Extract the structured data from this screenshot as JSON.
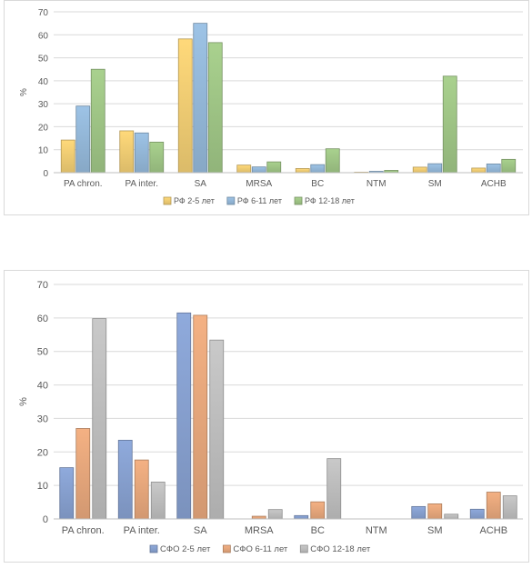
{
  "chart_data": [
    {
      "type": "bar",
      "title": "",
      "xlabel": "",
      "ylabel": "%",
      "ylim": [
        0,
        70
      ],
      "yticks": [
        0,
        10,
        20,
        30,
        40,
        50,
        60,
        70
      ],
      "categories": [
        "PA chron.",
        "PA inter.",
        "SA",
        "MRSA",
        "BC",
        "NTM",
        "SM",
        "ACHB"
      ],
      "series": [
        {
          "name": "РФ 2-5 лет",
          "color": "#ffd97a",
          "values": [
            14.2,
            18.2,
            58.2,
            3.3,
            1.8,
            0.2,
            2.4,
            2.0
          ]
        },
        {
          "name": "РФ 6-11 лет",
          "color": "#9dc3e6",
          "values": [
            29.0,
            17.3,
            65.0,
            2.5,
            3.5,
            0.6,
            3.9,
            3.8
          ]
        },
        {
          "name": "РФ 12-18 лет",
          "color": "#a9d18e",
          "values": [
            45.0,
            13.3,
            56.6,
            4.7,
            10.4,
            1.0,
            42.0,
            5.8
          ]
        }
      ],
      "grid": true,
      "legend": "bottom"
    },
    {
      "type": "bar",
      "title": "",
      "xlabel": "",
      "ylabel": "%",
      "ylim": [
        0,
        70
      ],
      "yticks": [
        0,
        10,
        20,
        30,
        40,
        50,
        60,
        70
      ],
      "categories": [
        "PA chron.",
        "PA inter.",
        "SA",
        "MRSA",
        "BC",
        "NTM",
        "SM",
        "ACHB"
      ],
      "series": [
        {
          "name": "СФО 2-5 лет",
          "color": "#8faadc",
          "values": [
            15.3,
            23.5,
            61.5,
            0,
            1.0,
            0,
            3.7,
            2.9
          ]
        },
        {
          "name": "СФО 6-11 лет",
          "color": "#f4b183",
          "values": [
            27.0,
            17.6,
            60.8,
            0.8,
            5.1,
            0,
            4.5,
            8.0
          ]
        },
        {
          "name": "СФО 12-18 лет",
          "color": "#c9c9c9",
          "values": [
            59.8,
            11.0,
            53.4,
            2.8,
            18.0,
            0,
            1.4,
            6.9
          ]
        }
      ],
      "grid": true,
      "legend": "bottom"
    }
  ]
}
